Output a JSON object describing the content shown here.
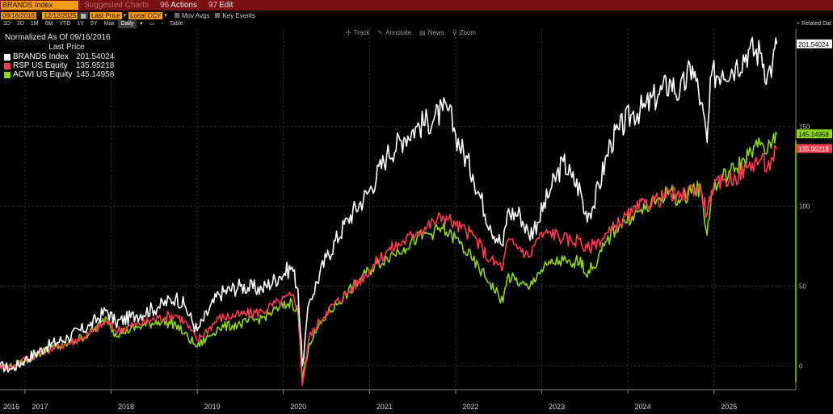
{
  "title_bar": {
    "ticker": "BRANDS Index",
    "menu_dim": "Suggested Charts",
    "actions": {
      "num": "96",
      "label": "Actions"
    },
    "edit": {
      "num": "97",
      "label": "Edit"
    }
  },
  "params": {
    "start_date": "09/16/2016",
    "end_date": "12/12/2025",
    "field": "Last Price",
    "currency": "Local CCY",
    "mov_avgs": "Mov Avgs",
    "key_events": "Key Events"
  },
  "range_bar": {
    "buttons": [
      "1D",
      "3D",
      "1M",
      "6M",
      "YTD",
      "1Y",
      "5Y",
      "Max"
    ],
    "frequency": "Daily",
    "table": "Table",
    "related": "+ Related Dat"
  },
  "tools": [
    {
      "icon": "crosshair-icon",
      "glyph": "✣",
      "label": "Track"
    },
    {
      "icon": "pencil-icon",
      "glyph": "✎",
      "label": "Annotate"
    },
    {
      "icon": "news-icon",
      "glyph": "▤",
      "label": "News"
    },
    {
      "icon": "zoom-icon",
      "glyph": "⚲",
      "label": "Zoom"
    }
  ],
  "legend": {
    "title": "Normalized As Of 09/16/2016",
    "subtitle": "Last Price",
    "entries": [
      {
        "name": "BRANDS Index",
        "value": "201.54024",
        "color": "#ffffff"
      },
      {
        "name": "RSP US Equity",
        "value": "135.95218",
        "color": "#ff3b4e"
      },
      {
        "name": "ACWI US Equity",
        "value": "145.14958",
        "color": "#8fd61a"
      }
    ]
  },
  "chart_data": {
    "type": "line",
    "title": "Normalized As Of 09/16/2016",
    "subtitle": "Last Price",
    "xlabel": "",
    "ylabel": "",
    "xlim": [
      2016.71,
      2025.95
    ],
    "ylim": [
      -15,
      205
    ],
    "y_ticks": [
      0,
      50,
      100,
      150
    ],
    "x_ticks": [
      "2016",
      "2017",
      "2018",
      "2019",
      "2020",
      "2021",
      "2022",
      "2023",
      "2024",
      "2025"
    ],
    "grid": true,
    "legend_position": "top-left",
    "series": [
      {
        "name": "BRANDS Index",
        "color": "#ffffff",
        "last_value": 201.54024,
        "points": [
          [
            2016.71,
            0
          ],
          [
            2016.85,
            -2
          ],
          [
            2017.0,
            4
          ],
          [
            2017.25,
            12
          ],
          [
            2017.5,
            18
          ],
          [
            2017.75,
            25
          ],
          [
            2017.95,
            35
          ],
          [
            2018.05,
            27
          ],
          [
            2018.3,
            32
          ],
          [
            2018.55,
            37
          ],
          [
            2018.75,
            43
          ],
          [
            2018.85,
            38
          ],
          [
            2019.0,
            22
          ],
          [
            2019.25,
            45
          ],
          [
            2019.5,
            50
          ],
          [
            2019.75,
            48
          ],
          [
            2019.95,
            56
          ],
          [
            2020.1,
            62
          ],
          [
            2020.17,
            48
          ],
          [
            2020.22,
            0
          ],
          [
            2020.3,
            40
          ],
          [
            2020.5,
            68
          ],
          [
            2020.75,
            92
          ],
          [
            2021.0,
            110
          ],
          [
            2021.2,
            132
          ],
          [
            2021.4,
            143
          ],
          [
            2021.55,
            150
          ],
          [
            2021.75,
            155
          ],
          [
            2021.85,
            160
          ],
          [
            2021.92,
            160
          ],
          [
            2022.0,
            145
          ],
          [
            2022.2,
            120
          ],
          [
            2022.4,
            88
          ],
          [
            2022.55,
            75
          ],
          [
            2022.6,
            96
          ],
          [
            2022.75,
            95
          ],
          [
            2022.85,
            82
          ],
          [
            2022.95,
            90
          ],
          [
            2023.1,
            110
          ],
          [
            2023.25,
            128
          ],
          [
            2023.35,
            118
          ],
          [
            2023.45,
            110
          ],
          [
            2023.5,
            95
          ],
          [
            2023.6,
            100
          ],
          [
            2023.8,
            140
          ],
          [
            2023.9,
            148
          ],
          [
            2024.05,
            158
          ],
          [
            2024.2,
            162
          ],
          [
            2024.35,
            170
          ],
          [
            2024.5,
            178
          ],
          [
            2024.6,
            170
          ],
          [
            2024.75,
            188
          ],
          [
            2024.85,
            165
          ],
          [
            2024.92,
            140
          ],
          [
            2024.97,
            182
          ],
          [
            2025.1,
            185
          ],
          [
            2025.25,
            188
          ],
          [
            2025.4,
            198
          ],
          [
            2025.55,
            196
          ],
          [
            2025.62,
            182
          ],
          [
            2025.68,
            190
          ],
          [
            2025.73,
            201.54
          ]
        ]
      },
      {
        "name": "RSP US Equity",
        "color": "#ff3b4e",
        "last_value": 135.95218,
        "points": [
          [
            2016.71,
            0
          ],
          [
            2016.85,
            -1
          ],
          [
            2017.0,
            4
          ],
          [
            2017.25,
            10
          ],
          [
            2017.5,
            14
          ],
          [
            2017.75,
            20
          ],
          [
            2017.95,
            28
          ],
          [
            2018.05,
            22
          ],
          [
            2018.3,
            26
          ],
          [
            2018.55,
            30
          ],
          [
            2018.75,
            32
          ],
          [
            2018.85,
            28
          ],
          [
            2019.0,
            16
          ],
          [
            2019.25,
            30
          ],
          [
            2019.5,
            32
          ],
          [
            2019.75,
            34
          ],
          [
            2019.95,
            40
          ],
          [
            2020.1,
            44
          ],
          [
            2020.17,
            38
          ],
          [
            2020.22,
            -12
          ],
          [
            2020.3,
            18
          ],
          [
            2020.5,
            34
          ],
          [
            2020.75,
            46
          ],
          [
            2021.0,
            60
          ],
          [
            2021.2,
            72
          ],
          [
            2021.4,
            78
          ],
          [
            2021.55,
            84
          ],
          [
            2021.75,
            90
          ],
          [
            2021.85,
            94
          ],
          [
            2021.92,
            92
          ],
          [
            2022.0,
            88
          ],
          [
            2022.2,
            82
          ],
          [
            2022.4,
            66
          ],
          [
            2022.55,
            62
          ],
          [
            2022.6,
            78
          ],
          [
            2022.75,
            74
          ],
          [
            2022.85,
            68
          ],
          [
            2022.95,
            80
          ],
          [
            2023.1,
            84
          ],
          [
            2023.25,
            80
          ],
          [
            2023.35,
            78
          ],
          [
            2023.45,
            80
          ],
          [
            2023.5,
            72
          ],
          [
            2023.6,
            76
          ],
          [
            2023.8,
            84
          ],
          [
            2023.9,
            90
          ],
          [
            2024.05,
            96
          ],
          [
            2024.2,
            102
          ],
          [
            2024.35,
            104
          ],
          [
            2024.5,
            108
          ],
          [
            2024.6,
            105
          ],
          [
            2024.75,
            112
          ],
          [
            2024.85,
            110
          ],
          [
            2024.92,
            95
          ],
          [
            2024.97,
            110
          ],
          [
            2025.1,
            116
          ],
          [
            2025.25,
            118
          ],
          [
            2025.4,
            125
          ],
          [
            2025.55,
            130
          ],
          [
            2025.62,
            124
          ],
          [
            2025.68,
            130
          ],
          [
            2025.73,
            135.95
          ]
        ]
      },
      {
        "name": "ACWI US Equity",
        "color": "#8fd61a",
        "last_value": 145.14958,
        "points": [
          [
            2016.71,
            0
          ],
          [
            2016.85,
            -1
          ],
          [
            2017.0,
            3
          ],
          [
            2017.25,
            10
          ],
          [
            2017.5,
            14
          ],
          [
            2017.75,
            20
          ],
          [
            2017.95,
            30
          ],
          [
            2018.05,
            20
          ],
          [
            2018.3,
            24
          ],
          [
            2018.55,
            28
          ],
          [
            2018.75,
            26
          ],
          [
            2018.85,
            20
          ],
          [
            2019.0,
            12
          ],
          [
            2019.25,
            24
          ],
          [
            2019.5,
            26
          ],
          [
            2019.75,
            30
          ],
          [
            2019.95,
            36
          ],
          [
            2020.1,
            40
          ],
          [
            2020.17,
            34
          ],
          [
            2020.22,
            -8
          ],
          [
            2020.3,
            14
          ],
          [
            2020.5,
            32
          ],
          [
            2020.75,
            46
          ],
          [
            2021.0,
            60
          ],
          [
            2021.2,
            68
          ],
          [
            2021.4,
            74
          ],
          [
            2021.55,
            80
          ],
          [
            2021.75,
            84
          ],
          [
            2021.85,
            86
          ],
          [
            2021.92,
            82
          ],
          [
            2022.0,
            80
          ],
          [
            2022.2,
            66
          ],
          [
            2022.4,
            52
          ],
          [
            2022.55,
            40
          ],
          [
            2022.6,
            56
          ],
          [
            2022.75,
            52
          ],
          [
            2022.85,
            48
          ],
          [
            2022.95,
            58
          ],
          [
            2023.1,
            64
          ],
          [
            2023.25,
            66
          ],
          [
            2023.35,
            62
          ],
          [
            2023.45,
            68
          ],
          [
            2023.5,
            58
          ],
          [
            2023.6,
            62
          ],
          [
            2023.8,
            82
          ],
          [
            2023.9,
            88
          ],
          [
            2024.05,
            94
          ],
          [
            2024.2,
            98
          ],
          [
            2024.35,
            104
          ],
          [
            2024.5,
            110
          ],
          [
            2024.6,
            102
          ],
          [
            2024.75,
            112
          ],
          [
            2024.85,
            110
          ],
          [
            2024.92,
            82
          ],
          [
            2024.97,
            108
          ],
          [
            2025.1,
            118
          ],
          [
            2025.25,
            124
          ],
          [
            2025.4,
            132
          ],
          [
            2025.55,
            140
          ],
          [
            2025.62,
            134
          ],
          [
            2025.68,
            142
          ],
          [
            2025.73,
            145.15
          ]
        ]
      }
    ]
  }
}
